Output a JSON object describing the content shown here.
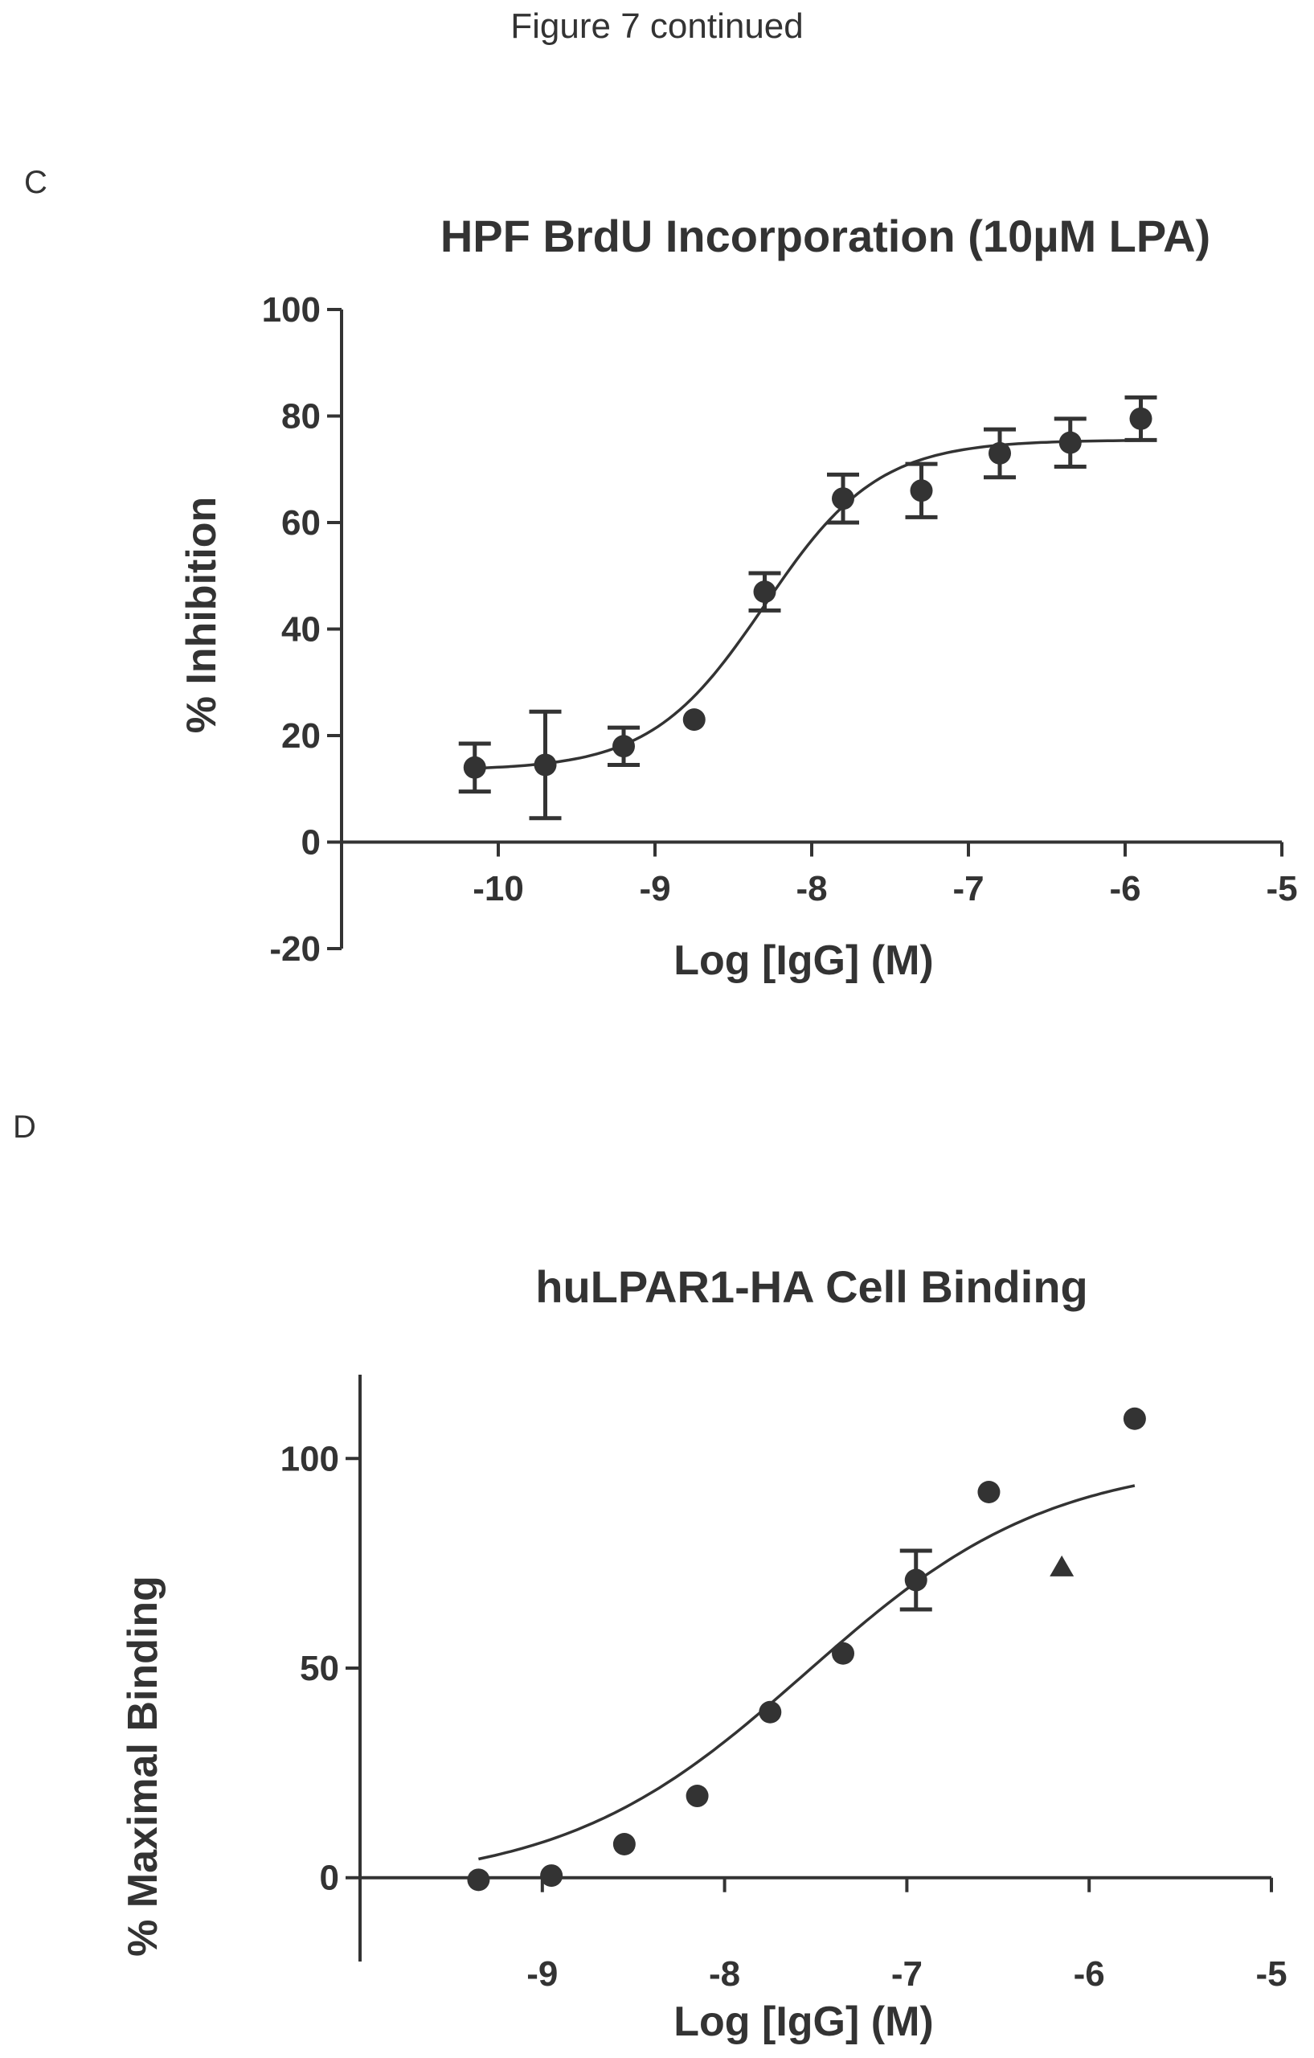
{
  "figure_title": "Figure 7 continued",
  "panels": [
    {
      "label": "C"
    },
    {
      "label": "D"
    }
  ],
  "chart_data": [
    {
      "type": "scatter",
      "title": "HPF  BrdU Incorporation (10µM LPA)",
      "xlabel": "Log [IgG] (M)",
      "ylabel": "% Inhibition",
      "xlim": [
        -11,
        -5
      ],
      "ylim": [
        -20,
        100
      ],
      "xticks": [
        -10,
        -9,
        -8,
        -7,
        -6,
        -5
      ],
      "yticks": [
        100,
        80,
        60,
        40,
        20,
        0,
        -20
      ],
      "xtick_labels": [
        "-10",
        "-9",
        "-8",
        "-7",
        "-6",
        "-5"
      ],
      "ytick_labels": [
        "100",
        "80",
        "60",
        "40",
        "20",
        "0",
        "-20"
      ],
      "grid": false,
      "series": [
        {
          "marker": "circle",
          "x": [
            -10.15,
            -9.7,
            -9.2,
            -8.75,
            -8.3,
            -7.8,
            -7.3,
            -6.8,
            -6.35,
            -5.9
          ],
          "y": [
            14,
            14.5,
            18,
            23,
            47,
            64.5,
            66,
            73,
            75,
            79.5
          ],
          "error": [
            4.5,
            10,
            3.5,
            0,
            3.5,
            4.5,
            5,
            4.5,
            4.5,
            4
          ]
        }
      ],
      "fit_curve": {
        "bottom": 13.5,
        "top": 75.5,
        "log_ec50": -8.3,
        "hill": 1.2,
        "x_range": [
          -10.15,
          -5.9
        ]
      }
    },
    {
      "type": "scatter",
      "title": "huLPAR1-HA Cell Binding",
      "xlabel": "Log [IgG] (M)",
      "ylabel": "% Maximal Binding",
      "xlim": [
        -10,
        -5
      ],
      "ylim": [
        -20,
        120
      ],
      "xticks": [
        -9,
        -8,
        -7,
        -6,
        -5
      ],
      "yticks": [
        100,
        50,
        0
      ],
      "xtick_labels": [
        "-9",
        "-8",
        "-7",
        "-6",
        "-5"
      ],
      "ytick_labels": [
        "100",
        "50",
        "0"
      ],
      "grid": false,
      "series": [
        {
          "marker": "circle",
          "x": [
            -9.35,
            -8.95,
            -8.55,
            -8.15,
            -7.75,
            -7.35,
            -6.95,
            -6.55,
            -5.75
          ],
          "y": [
            -0.5,
            0.5,
            8,
            19.5,
            39.5,
            53.5,
            71,
            92,
            109.5
          ],
          "error": [
            0,
            0,
            0,
            0,
            0,
            0,
            7,
            0,
            0
          ]
        },
        {
          "marker": "triangle",
          "x": [
            -6.15
          ],
          "y": [
            74
          ],
          "error": [
            0
          ]
        }
      ],
      "fit_curve": {
        "bottom": -2,
        "top": 100,
        "log_ec50": -7.55,
        "hill": 0.65,
        "x_range": [
          -9.35,
          -5.75
        ]
      }
    }
  ]
}
